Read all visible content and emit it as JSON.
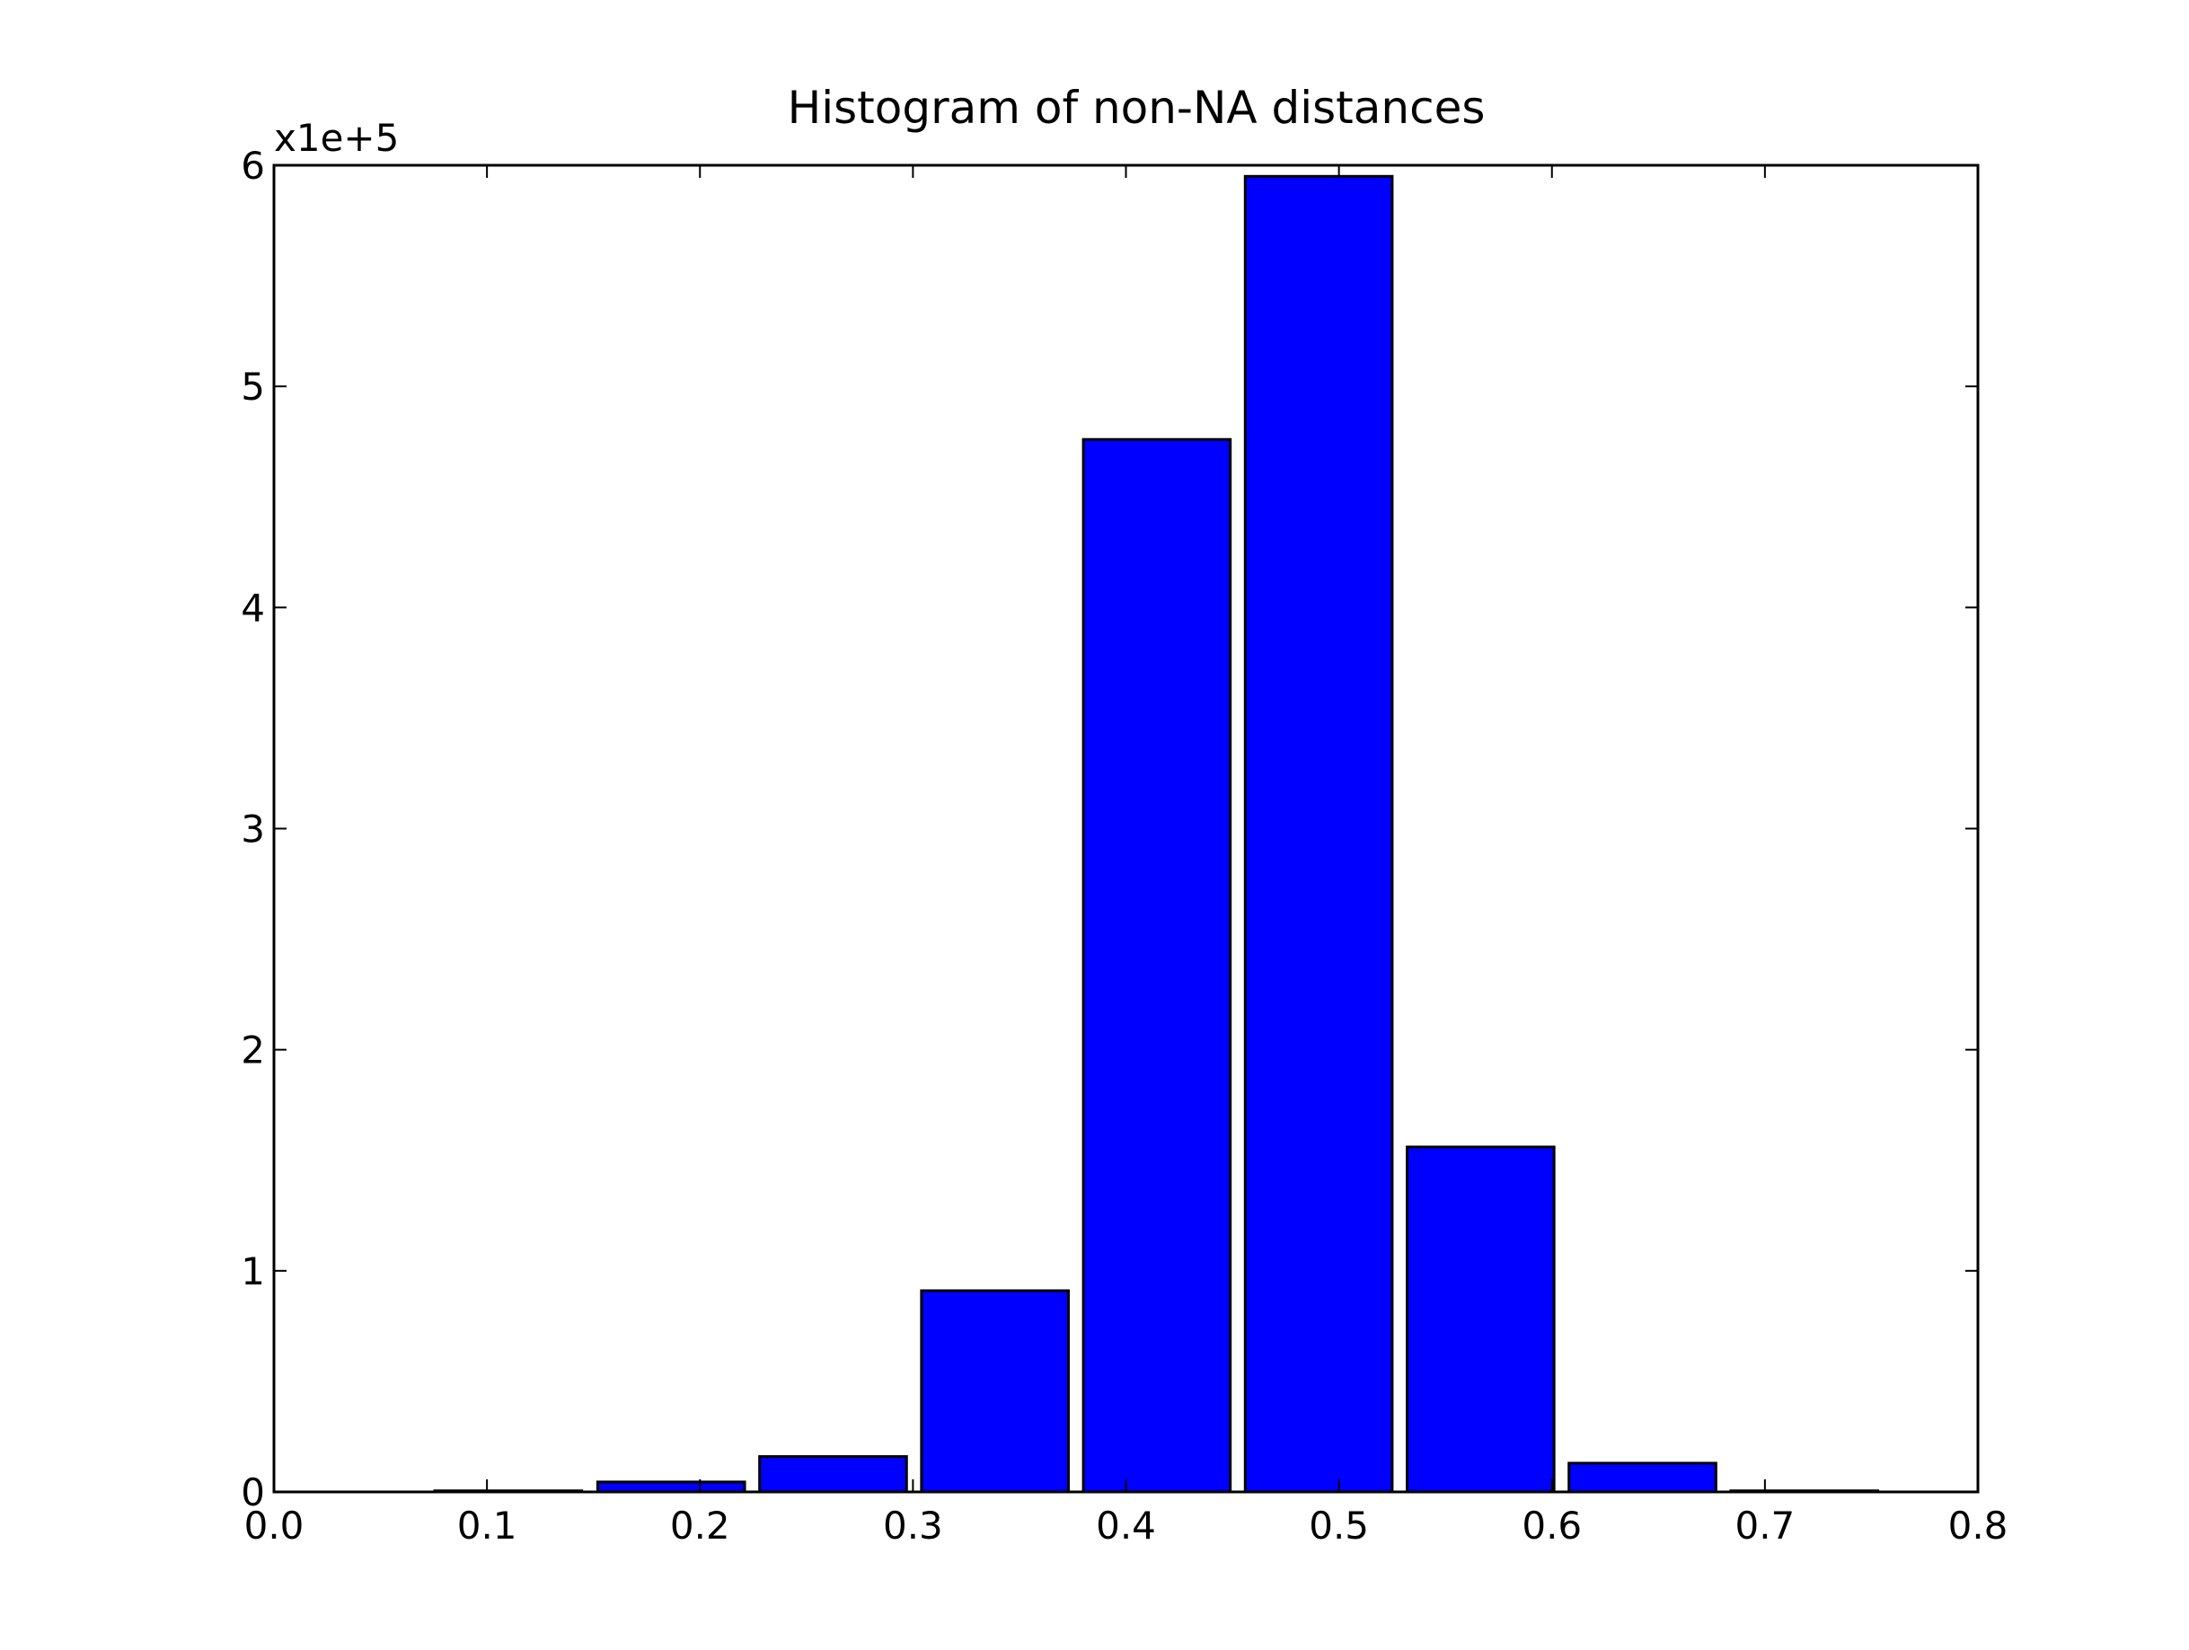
{
  "chart_data": {
    "type": "bar",
    "title": "Histogram of non-NA distances",
    "xlabel": "",
    "ylabel": "",
    "y_multiplier_label": "x1e+5",
    "xlim": [
      0.0,
      0.8
    ],
    "ylim": [
      0,
      6
    ],
    "x_ticks": [
      0.0,
      0.1,
      0.2,
      0.3,
      0.4,
      0.5,
      0.6,
      0.7,
      0.8
    ],
    "x_tick_labels": [
      "0.0",
      "0.1",
      "0.2",
      "0.3",
      "0.4",
      "0.5",
      "0.6",
      "0.7",
      "0.8"
    ],
    "y_ticks": [
      0,
      1,
      2,
      3,
      4,
      5,
      6
    ],
    "y_tick_labels": [
      "0",
      "1",
      "2",
      "3",
      "4",
      "5",
      "6"
    ],
    "bar_color": "#0000ff",
    "edge_color": "#000000",
    "grid": false,
    "bins": [
      {
        "x0": -0.006,
        "x1": 0.0625,
        "value": 0.0
      },
      {
        "x0": 0.0755,
        "x1": 0.1445,
        "value": 0.005
      },
      {
        "x0": 0.152,
        "x1": 0.221,
        "value": 0.045
      },
      {
        "x0": 0.228,
        "x1": 0.297,
        "value": 0.16
      },
      {
        "x0": 0.304,
        "x1": 0.373,
        "value": 0.91
      },
      {
        "x0": 0.38,
        "x1": 0.449,
        "value": 4.76
      },
      {
        "x0": 0.456,
        "x1": 0.525,
        "value": 5.95
      },
      {
        "x0": 0.532,
        "x1": 0.601,
        "value": 1.56
      },
      {
        "x0": 0.608,
        "x1": 0.677,
        "value": 0.13
      },
      {
        "x0": 0.684,
        "x1": 0.753,
        "value": 0.005
      }
    ]
  }
}
